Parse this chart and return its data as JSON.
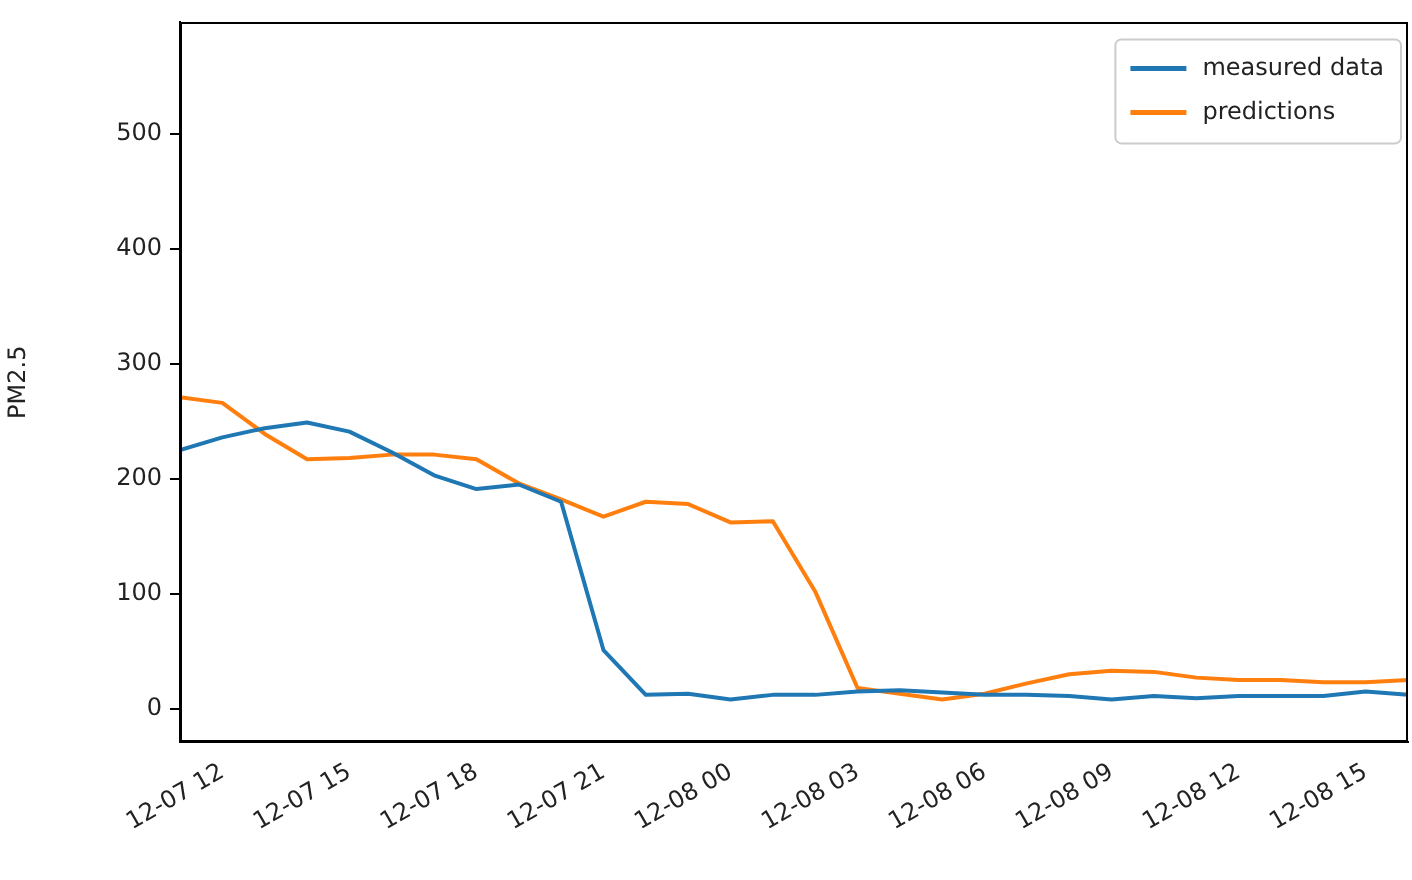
{
  "chart_data": {
    "type": "line",
    "ylabel": "PM2.5",
    "x": [
      "--12-07T11:00",
      "--12-07T12:00",
      "--12-07T13:00",
      "--12-07T14:00",
      "--12-07T15:00",
      "--12-07T16:00",
      "--12-07T17:00",
      "--12-07T18:00",
      "--12-07T19:00",
      "--12-07T20:00",
      "--12-07T21:00",
      "--12-07T22:00",
      "--12-07T23:00",
      "--12-08T00:00",
      "--12-08T01:00",
      "--12-08T02:00",
      "--12-08T03:00",
      "--12-08T04:00",
      "--12-08T05:00",
      "--12-08T06:00",
      "--12-08T07:00",
      "--12-08T08:00",
      "--12-08T09:00",
      "--12-08T10:00",
      "--12-08T11:00",
      "--12-08T12:00",
      "--12-08T13:00",
      "--12-08T14:00",
      "--12-08T15:00",
      "--12-08T16:00"
    ],
    "series": [
      {
        "name": "measured data",
        "color": "#1f77b4",
        "values": [
          225,
          236,
          244,
          249,
          241,
          223,
          203,
          191,
          195,
          180,
          51,
          12,
          13,
          8,
          12,
          12,
          15,
          16,
          14,
          12,
          12,
          11,
          8,
          11,
          9,
          11,
          11,
          11,
          15,
          12
        ]
      },
      {
        "name": "predictions",
        "color": "#ff7f0e",
        "values": [
          271,
          266,
          239,
          217,
          218,
          221,
          221,
          217,
          196,
          182,
          167,
          180,
          178,
          162,
          163,
          102,
          18,
          13,
          8,
          13,
          22,
          30,
          33,
          32,
          27,
          25,
          25,
          23,
          23,
          25
        ]
      }
    ],
    "xlim": [
      "--12-07T11:00",
      "--12-08T16:00"
    ],
    "ylim": [
      -29,
      597
    ],
    "xticks": [
      {
        "value": "--12-07T12:00",
        "label": "12-07 12"
      },
      {
        "value": "--12-07T15:00",
        "label": "12-07 15"
      },
      {
        "value": "--12-07T18:00",
        "label": "12-07 18"
      },
      {
        "value": "--12-07T21:00",
        "label": "12-07 21"
      },
      {
        "value": "--12-08T00:00",
        "label": "12-08 00"
      },
      {
        "value": "--12-08T03:00",
        "label": "12-08 03"
      },
      {
        "value": "--12-08T06:00",
        "label": "12-08 06"
      },
      {
        "value": "--12-08T09:00",
        "label": "12-08 09"
      },
      {
        "value": "--12-08T12:00",
        "label": "12-08 12"
      },
      {
        "value": "--12-08T15:00",
        "label": "12-08 15"
      }
    ],
    "yticks": [
      0,
      100,
      200,
      300,
      400,
      500
    ],
    "grid": false,
    "legend": "top right",
    "marker": "none",
    "line_style": "solid"
  }
}
